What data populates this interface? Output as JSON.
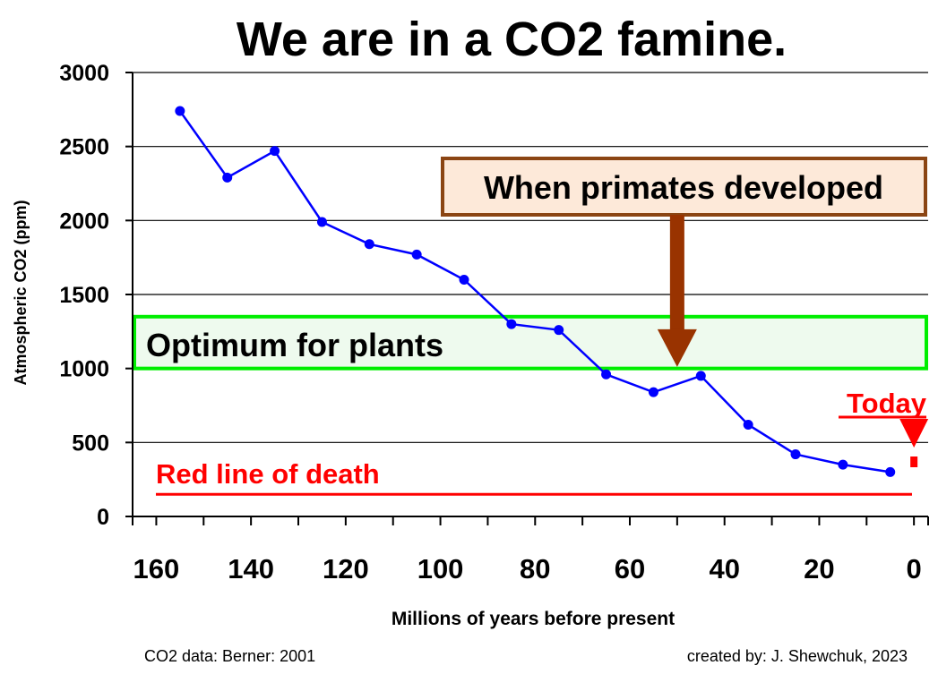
{
  "chart_data": {
    "type": "line",
    "title": "We are in a CO2 famine.",
    "xlabel": "Millions of years before present",
    "ylabel": "Atmospheric CO2 (ppm)",
    "xlim": [
      165,
      -3
    ],
    "ylim": [
      0,
      3000
    ],
    "x_ticks": [
      "160",
      "140",
      "120",
      "100",
      "80",
      "60",
      "40",
      "20",
      "0"
    ],
    "x_tick_values": [
      160,
      140,
      120,
      100,
      80,
      60,
      40,
      20,
      0
    ],
    "y_ticks": [
      "3000",
      "2500",
      "2000",
      "1500",
      "1000",
      "500",
      "0"
    ],
    "y_tick_values": [
      3000,
      2500,
      2000,
      1500,
      1000,
      500,
      0
    ],
    "grid": "horizontal",
    "series": [
      {
        "color": "#0000ff",
        "x": [
          155,
          145,
          135,
          125,
          115,
          105,
          95,
          85,
          75,
          65,
          55,
          45,
          35,
          25,
          15,
          5
        ],
        "y": [
          2740,
          2290,
          2470,
          1990,
          1840,
          1770,
          1600,
          1300,
          1260,
          960,
          840,
          950,
          620,
          420,
          350,
          300
        ],
        "values": [
          2740,
          2290,
          2470,
          1990,
          1840,
          1770,
          1600,
          1300,
          1260,
          960,
          840,
          950,
          620,
          420,
          350,
          300
        ]
      }
    ],
    "annotations": {
      "optimum_label": "Optimum for plants",
      "optimum_band": [
        1000,
        1350
      ],
      "optimum_color": "#00cc00",
      "primates_label": "When primates developed",
      "primates_at": 50,
      "primates_arrow_color": "#993300",
      "primates_box_fill": "#fde9d9",
      "deathline_label": "Red line of death",
      "deathline_value": 150,
      "deathline_color": "#ff0000",
      "today_label": "Today",
      "today_at": 0,
      "today_value": 300
    },
    "footer_left": "CO2 data: Berner: 2001",
    "footer_right": "created by: J. Shewchuk, 2023"
  }
}
